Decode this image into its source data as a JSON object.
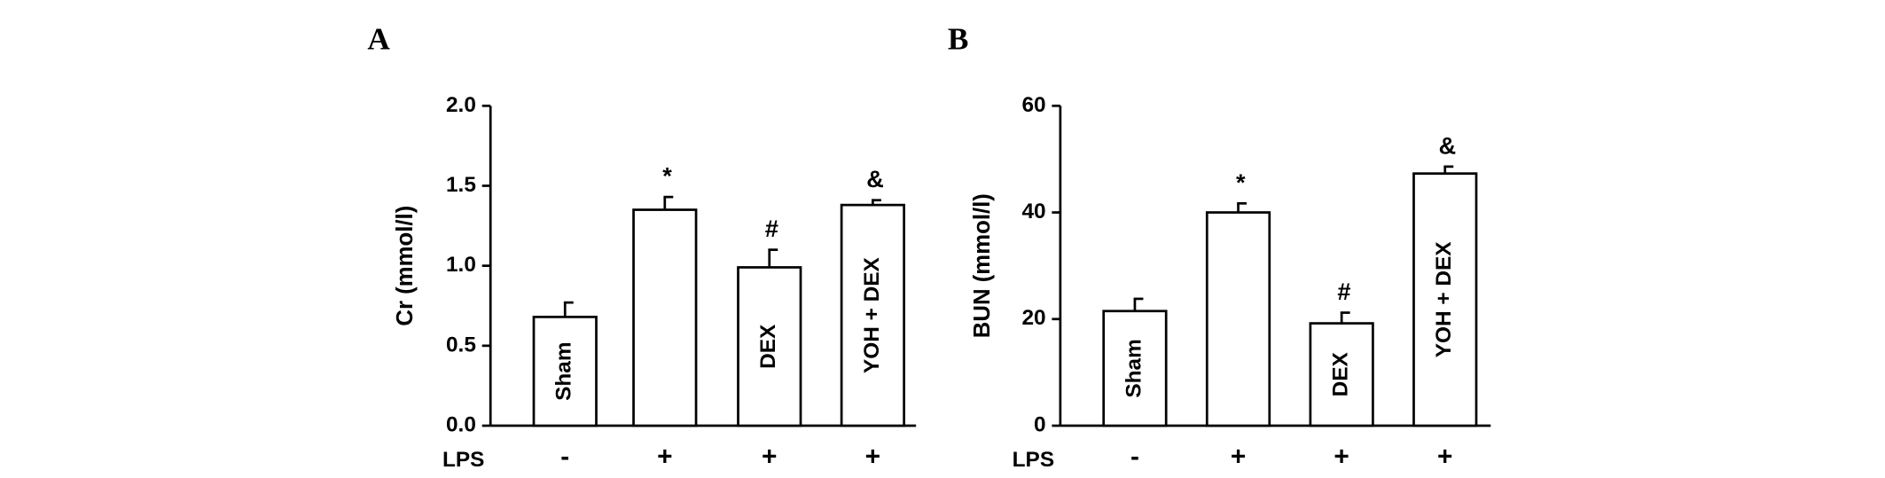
{
  "chart_data": [
    {
      "type": "bar",
      "panel": "A",
      "y_label": "Cr (mmol/l)",
      "categories": [
        "Sham",
        null,
        "DEX",
        "YOH + DEX"
      ],
      "values": [
        0.68,
        1.35,
        0.99,
        1.38
      ],
      "errors": [
        0.09,
        0.08,
        0.11,
        0.03
      ],
      "annotations": [
        null,
        "*",
        "#",
        "&"
      ],
      "row_label": "LPS",
      "row_values": [
        "-",
        "+",
        "+",
        "+"
      ],
      "color": "#ffffff",
      "ylim": [
        0,
        2
      ],
      "yticks": [
        {
          "value": 0,
          "label": "0.0"
        },
        0.5,
        {
          "value": 1,
          "label": "1.0"
        },
        1.5,
        {
          "value": 2,
          "label": "2.0"
        }
      ]
    },
    {
      "type": "bar",
      "panel": "B",
      "y_label": "BUN (mmol/l)",
      "categories": [
        "Sham",
        null,
        "DEX",
        "YOH + DEX"
      ],
      "values": [
        21.5,
        40,
        19.2,
        47.3
      ],
      "errors": [
        2.3,
        1.7,
        2.0,
        1.3
      ],
      "annotations": [
        null,
        "*",
        "#",
        "&"
      ],
      "row_label": "LPS",
      "row_values": [
        "-",
        "+",
        "+",
        "+"
      ],
      "color": "#ffffff",
      "ylim": [
        0,
        60
      ],
      "yticks": [
        0,
        20,
        40,
        60
      ]
    }
  ]
}
